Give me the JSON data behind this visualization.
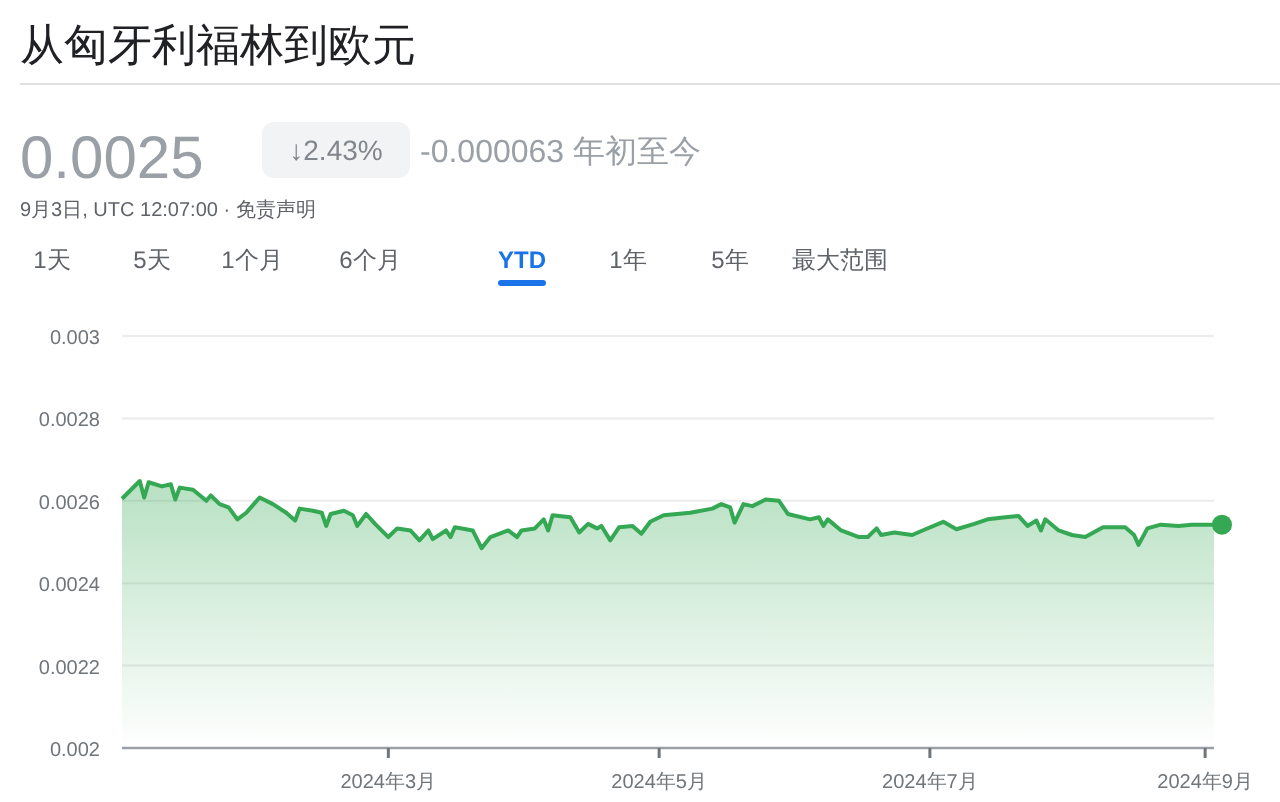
{
  "chart_data": {
    "type": "area",
    "title": "从匈牙利福林到欧元",
    "annotations": [
      "0.0025",
      "↓2.43%",
      "-0.000063 年初至今",
      "9月3日, UTC 12:07:00 · 免责声明",
      "1天",
      "5天",
      "1个月",
      "6个月",
      "YTD",
      "1年",
      "5年",
      "最大范围"
    ],
    "x": [
      "2024-01-01",
      "2024-01-05",
      "2024-01-06",
      "2024-01-07",
      "2024-01-10",
      "2024-01-12",
      "2024-01-13",
      "2024-01-14",
      "2024-01-17",
      "2024-01-20",
      "2024-01-21",
      "2024-01-23",
      "2024-01-25",
      "2024-01-27",
      "2024-01-29",
      "2024-02-01",
      "2024-02-04",
      "2024-02-07",
      "2024-02-09",
      "2024-02-10",
      "2024-02-13",
      "2024-02-15",
      "2024-02-16",
      "2024-02-17",
      "2024-02-20",
      "2024-02-22",
      "2024-02-23",
      "2024-02-25",
      "2024-02-27",
      "2024-03-01",
      "2024-03-03",
      "2024-03-06",
      "2024-03-08",
      "2024-03-10",
      "2024-03-11",
      "2024-03-14",
      "2024-03-15",
      "2024-03-16",
      "2024-03-20",
      "2024-03-22",
      "2024-03-24",
      "2024-03-28",
      "2024-03-30",
      "2024-03-31",
      "2024-04-03",
      "2024-04-05",
      "2024-04-06",
      "2024-04-07",
      "2024-04-11",
      "2024-04-13",
      "2024-04-15",
      "2024-04-17",
      "2024-04-18",
      "2024-04-20",
      "2024-04-22",
      "2024-04-25",
      "2024-04-27",
      "2024-04-29",
      "2024-05-02",
      "2024-05-08",
      "2024-05-13",
      "2024-05-15",
      "2024-05-17",
      "2024-05-18",
      "2024-05-20",
      "2024-05-22",
      "2024-05-25",
      "2024-05-28",
      "2024-05-30",
      "2024-06-04",
      "2024-06-06",
      "2024-06-07",
      "2024-06-08",
      "2024-06-11",
      "2024-06-15",
      "2024-06-17",
      "2024-06-19",
      "2024-06-20",
      "2024-06-23",
      "2024-06-25",
      "2024-06-27",
      "2024-06-30",
      "2024-07-04",
      "2024-07-07",
      "2024-07-11",
      "2024-07-14",
      "2024-07-18",
      "2024-07-21",
      "2024-07-23",
      "2024-07-25",
      "2024-07-26",
      "2024-07-27",
      "2024-07-30",
      "2024-08-02",
      "2024-08-05",
      "2024-08-09",
      "2024-08-14",
      "2024-08-16",
      "2024-08-17",
      "2024-08-19",
      "2024-08-22",
      "2024-08-26",
      "2024-08-29",
      "2024-09-03"
    ],
    "series": [
      {
        "color": "#34a853",
        "values": [
          0.002605,
          0.002648,
          0.002608,
          0.002645,
          0.002635,
          0.00264,
          0.002603,
          0.002632,
          0.002627,
          0.0026,
          0.002613,
          0.002592,
          0.002584,
          0.002555,
          0.002571,
          0.002608,
          0.002592,
          0.002571,
          0.002552,
          0.002581,
          0.002576,
          0.002571,
          0.002539,
          0.002568,
          0.002576,
          0.002565,
          0.002539,
          0.002568,
          0.002544,
          0.002512,
          0.002533,
          0.002528,
          0.002504,
          0.002528,
          0.002507,
          0.002528,
          0.002512,
          0.002536,
          0.002528,
          0.002485,
          0.002512,
          0.002528,
          0.002512,
          0.002528,
          0.002533,
          0.002555,
          0.002528,
          0.002565,
          0.00256,
          0.002523,
          0.002544,
          0.002533,
          0.002539,
          0.002504,
          0.002536,
          0.002539,
          0.00252,
          0.002549,
          0.002565,
          0.002571,
          0.002581,
          0.002592,
          0.002584,
          0.002547,
          0.002592,
          0.002587,
          0.002603,
          0.0026,
          0.002568,
          0.002555,
          0.00256,
          0.002539,
          0.002555,
          0.002528,
          0.002512,
          0.002512,
          0.002533,
          0.002517,
          0.002523,
          0.00252,
          0.002517,
          0.002531,
          0.002549,
          0.002531,
          0.002544,
          0.002555,
          0.00256,
          0.002563,
          0.002539,
          0.002552,
          0.002528,
          0.002555,
          0.002528,
          0.002517,
          0.002512,
          0.002536,
          0.002536,
          0.002517,
          0.002493,
          0.002533,
          0.002542,
          0.002539,
          0.002542,
          0.002542
        ]
      }
    ],
    "xlim": [
      "2024-01-01",
      "2024-09-03"
    ],
    "xticks": [
      {
        "value": "2024-03-01",
        "label": "2024年3月"
      },
      {
        "value": "2024-05-01",
        "label": "2024年5月"
      },
      {
        "value": "2024-07-01",
        "label": "2024年7月"
      },
      {
        "value": "2024-09-01",
        "label": "2024年9月"
      }
    ],
    "ylim": [
      0.002,
      0.003
    ],
    "yticks": [
      0.002,
      0.0022,
      0.0024,
      0.0026,
      0.0028,
      0.003
    ],
    "grid": "y",
    "marker": "none",
    "line_style": "solid"
  }
}
